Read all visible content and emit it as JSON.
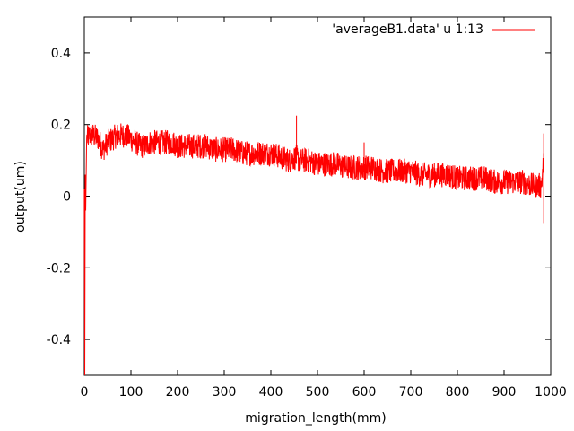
{
  "chart_data": {
    "type": "line",
    "title": "",
    "xlabel": "migration_length(mm)",
    "ylabel": "output(um)",
    "xlim": [
      0,
      1000
    ],
    "ylim": [
      -0.5,
      0.5
    ],
    "x_ticks": [
      0,
      100,
      200,
      300,
      400,
      500,
      600,
      700,
      800,
      900,
      1000
    ],
    "y_ticks": [
      -0.4,
      -0.2,
      0,
      0.2,
      0.4
    ],
    "y_tick_labels": [
      "-0.4",
      "-0.2",
      "0",
      "0.2",
      "0.4"
    ],
    "grid": false,
    "legend_position": "top-right",
    "series": [
      {
        "name": "'averageB1.data' u 1:13",
        "color": "#ff0000",
        "style": "noisy line",
        "x": [
          0,
          1,
          2,
          3,
          5,
          10,
          20,
          30,
          40,
          50,
          60,
          70,
          80,
          90,
          100,
          110,
          120,
          130,
          140,
          150,
          160,
          170,
          180,
          190,
          200,
          220,
          240,
          260,
          280,
          300,
          320,
          340,
          360,
          380,
          400,
          420,
          440,
          455,
          460,
          480,
          500,
          520,
          540,
          560,
          580,
          600,
          620,
          640,
          660,
          680,
          700,
          720,
          740,
          760,
          780,
          800,
          820,
          840,
          860,
          880,
          900,
          920,
          940,
          960,
          980,
          985
        ],
        "y": [
          0.02,
          -0.5,
          0.06,
          -0.04,
          0.16,
          0.17,
          0.17,
          0.16,
          0.13,
          0.15,
          0.16,
          0.17,
          0.17,
          0.17,
          0.16,
          0.15,
          0.14,
          0.14,
          0.15,
          0.15,
          0.15,
          0.15,
          0.15,
          0.15,
          0.14,
          0.14,
          0.14,
          0.14,
          0.13,
          0.13,
          0.13,
          0.12,
          0.12,
          0.12,
          0.12,
          0.11,
          0.1,
          0.11,
          0.1,
          0.1,
          0.09,
          0.09,
          0.09,
          0.08,
          0.08,
          0.08,
          0.08,
          0.07,
          0.07,
          0.07,
          0.07,
          0.06,
          0.06,
          0.06,
          0.06,
          0.05,
          0.05,
          0.05,
          0.05,
          0.04,
          0.04,
          0.04,
          0.04,
          0.03,
          0.03,
          0.1
        ],
        "noise_amplitude": 0.035
      }
    ]
  }
}
